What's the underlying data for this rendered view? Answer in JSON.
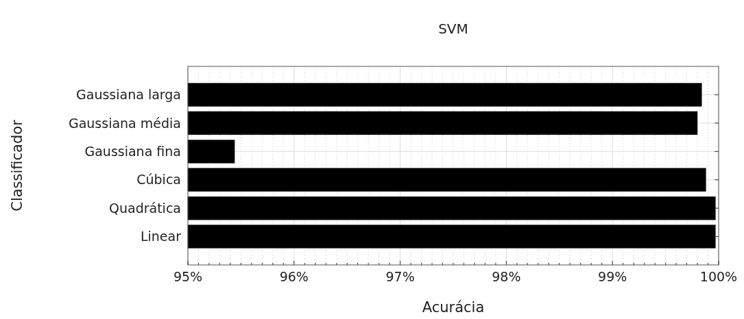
{
  "chart_data": {
    "type": "bar",
    "orientation": "horizontal",
    "title": "SVM",
    "xlabel": "Acurácia",
    "ylabel": "Classificador",
    "categories": [
      "Gaussiana larga",
      "Gaussiana média",
      "Gaussiana fina",
      "Cúbica",
      "Quadrática",
      "Linear"
    ],
    "values": [
      99.84,
      99.8,
      95.44,
      99.88,
      99.97,
      99.97
    ],
    "color": "#000000",
    "xlim": [
      95,
      100
    ],
    "xticks": [
      {
        "value": 95,
        "label": "95%"
      },
      {
        "value": 95.1,
        "label": null
      },
      {
        "value": 95.2,
        "label": null
      },
      {
        "value": 95.3,
        "label": null
      },
      {
        "value": 95.4,
        "label": null
      },
      {
        "value": 95.5,
        "label": null
      },
      {
        "value": 95.6,
        "label": null
      },
      {
        "value": 95.7,
        "label": null
      },
      {
        "value": 95.8,
        "label": null
      },
      {
        "value": 95.9,
        "label": null
      },
      {
        "value": 96,
        "label": "96%"
      },
      {
        "value": 96.1,
        "label": null
      },
      {
        "value": 96.2,
        "label": null
      },
      {
        "value": 96.3,
        "label": null
      },
      {
        "value": 96.4,
        "label": null
      },
      {
        "value": 96.5,
        "label": null
      },
      {
        "value": 96.6,
        "label": null
      },
      {
        "value": 96.7,
        "label": null
      },
      {
        "value": 96.8,
        "label": null
      },
      {
        "value": 96.9,
        "label": null
      },
      {
        "value": 97,
        "label": "97%"
      },
      {
        "value": 97.1,
        "label": null
      },
      {
        "value": 97.2,
        "label": null
      },
      {
        "value": 97.3,
        "label": null
      },
      {
        "value": 97.4,
        "label": null
      },
      {
        "value": 97.5,
        "label": null
      },
      {
        "value": 97.6,
        "label": null
      },
      {
        "value": 97.7,
        "label": null
      },
      {
        "value": 97.8,
        "label": null
      },
      {
        "value": 97.9,
        "label": null
      },
      {
        "value": 98,
        "label": "98%"
      },
      {
        "value": 98.1,
        "label": null
      },
      {
        "value": 98.2,
        "label": null
      },
      {
        "value": 98.3,
        "label": null
      },
      {
        "value": 98.4,
        "label": null
      },
      {
        "value": 98.5,
        "label": null
      },
      {
        "value": 98.6,
        "label": null
      },
      {
        "value": 98.7,
        "label": null
      },
      {
        "value": 98.8,
        "label": null
      },
      {
        "value": 98.9,
        "label": null
      },
      {
        "value": 99,
        "label": "99%"
      },
      {
        "value": 99.1,
        "label": null
      },
      {
        "value": 99.2,
        "label": null
      },
      {
        "value": 99.3,
        "label": null
      },
      {
        "value": 99.4,
        "label": null
      },
      {
        "value": 99.5,
        "label": null
      },
      {
        "value": 99.6,
        "label": null
      },
      {
        "value": 99.7,
        "label": null
      },
      {
        "value": 99.8,
        "label": null
      },
      {
        "value": 99.9,
        "label": null
      },
      {
        "value": 100,
        "label": "100%"
      }
    ],
    "grid": true
  }
}
